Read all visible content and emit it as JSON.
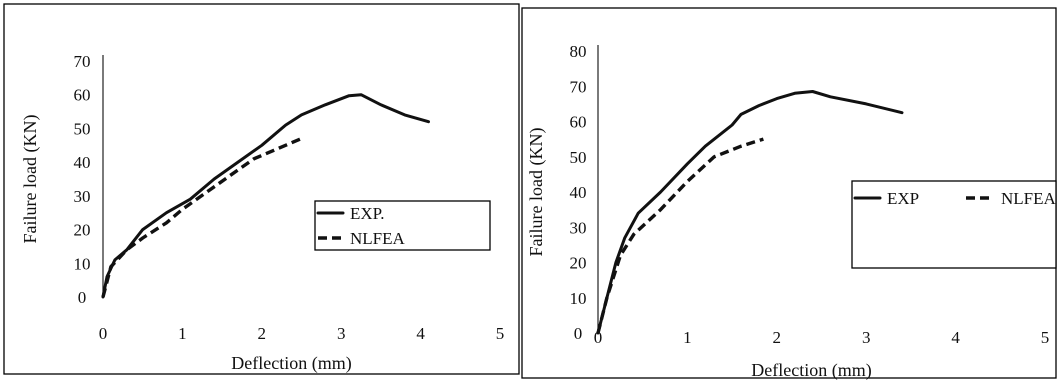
{
  "chart_data": [
    {
      "type": "line",
      "title": "",
      "xlabel": "Deflection (mm)",
      "ylabel": "Failure load (KN)",
      "xlim": [
        0,
        5
      ],
      "ylim": [
        0,
        70
      ],
      "xticks": [
        "0",
        "1",
        "2",
        "3",
        "4",
        "5"
      ],
      "yticks": [
        "0",
        "10",
        "20",
        "30",
        "40",
        "50",
        "60",
        "70"
      ],
      "grid": false,
      "legend_position": "lower-right",
      "series": [
        {
          "name": "EXP.",
          "style": "solid",
          "x": [
            0,
            0.05,
            0.15,
            0.3,
            0.5,
            0.8,
            1.1,
            1.4,
            1.7,
            2.0,
            2.3,
            2.5,
            2.8,
            3.1,
            3.25,
            3.5,
            3.8,
            4.1
          ],
          "y": [
            0,
            6,
            11,
            14,
            20,
            25,
            29,
            35,
            40,
            45,
            51,
            54,
            57,
            59.7,
            60,
            57,
            54,
            52
          ]
        },
        {
          "name": "NLFEA",
          "style": "dashed",
          "x": [
            0,
            0.1,
            0.3,
            0.5,
            0.8,
            1.0,
            1.3,
            1.6,
            1.9,
            2.2,
            2.5
          ],
          "y": [
            0,
            9,
            14,
            17.5,
            22,
            26,
            31,
            36,
            41,
            44,
            47
          ]
        }
      ]
    },
    {
      "type": "line",
      "title": "",
      "xlabel": "Deflection (mm)",
      "ylabel": "Failure load (KN)",
      "xlim": [
        0,
        5
      ],
      "ylim": [
        0,
        80
      ],
      "xticks": [
        "0",
        "1",
        "2",
        "3",
        "4",
        "5"
      ],
      "yticks": [
        "0",
        "10",
        "20",
        "30",
        "40",
        "50",
        "60",
        "70",
        "80"
      ],
      "grid": false,
      "legend_position": "right",
      "series": [
        {
          "name": "EXP",
          "style": "solid",
          "x": [
            0,
            0.1,
            0.2,
            0.3,
            0.45,
            0.7,
            1.0,
            1.2,
            1.5,
            1.6,
            1.8,
            2.0,
            2.2,
            2.4,
            2.6,
            3.0,
            3.4
          ],
          "y": [
            0,
            10,
            20,
            27,
            34,
            40,
            48,
            53,
            59,
            62,
            64.5,
            66.5,
            68,
            68.5,
            67,
            65,
            62.5
          ]
        },
        {
          "name": "NLFEA",
          "style": "dashed",
          "x": [
            0,
            0.1,
            0.25,
            0.4,
            0.7,
            1.0,
            1.3,
            1.6,
            1.85
          ],
          "y": [
            0,
            10,
            22,
            28,
            35,
            43,
            50,
            53,
            55
          ]
        }
      ]
    }
  ]
}
